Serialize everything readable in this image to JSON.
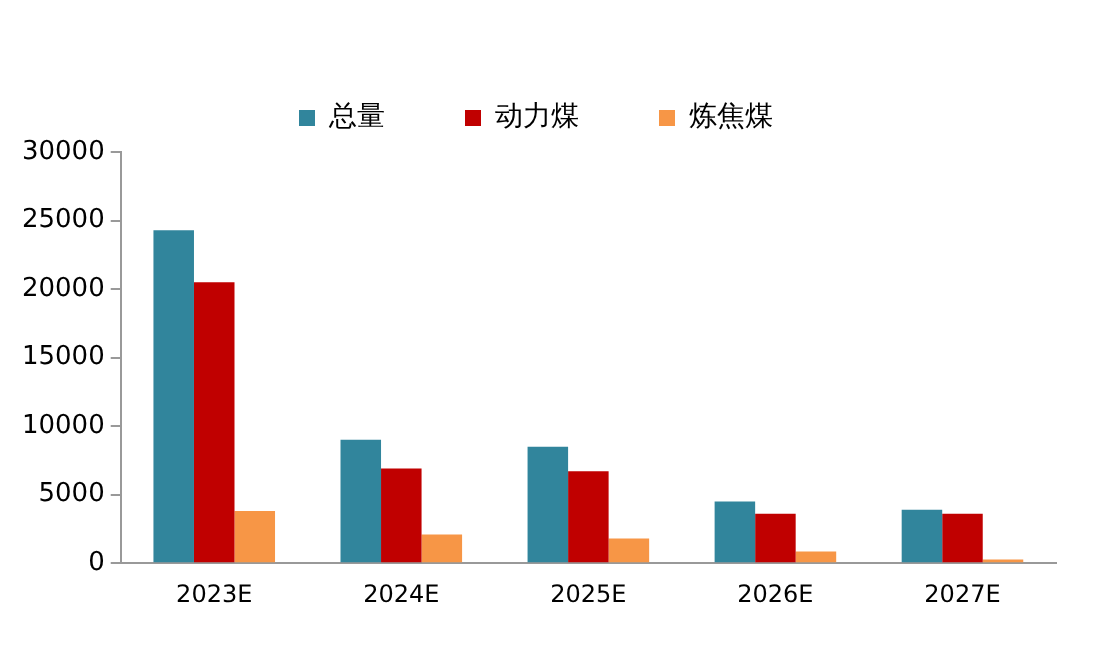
{
  "chart_data": {
    "type": "bar",
    "categories": [
      "2023E",
      "2024E",
      "2025E",
      "2026E",
      "2027E"
    ],
    "series": [
      {
        "name": "总量",
        "color": "#31859c",
        "values": [
          24300,
          9000,
          8500,
          4500,
          3900
        ]
      },
      {
        "name": "动力煤",
        "color": "#c00000",
        "values": [
          20500,
          6900,
          6700,
          3600,
          3600
        ]
      },
      {
        "name": "炼焦煤",
        "color": "#f79646",
        "values": [
          3800,
          2100,
          1800,
          850,
          270
        ]
      }
    ],
    "ylim": [
      0,
      30000
    ],
    "yticks": [
      0,
      5000,
      10000,
      15000,
      20000,
      25000,
      30000
    ],
    "grid": false,
    "legend": "top"
  }
}
